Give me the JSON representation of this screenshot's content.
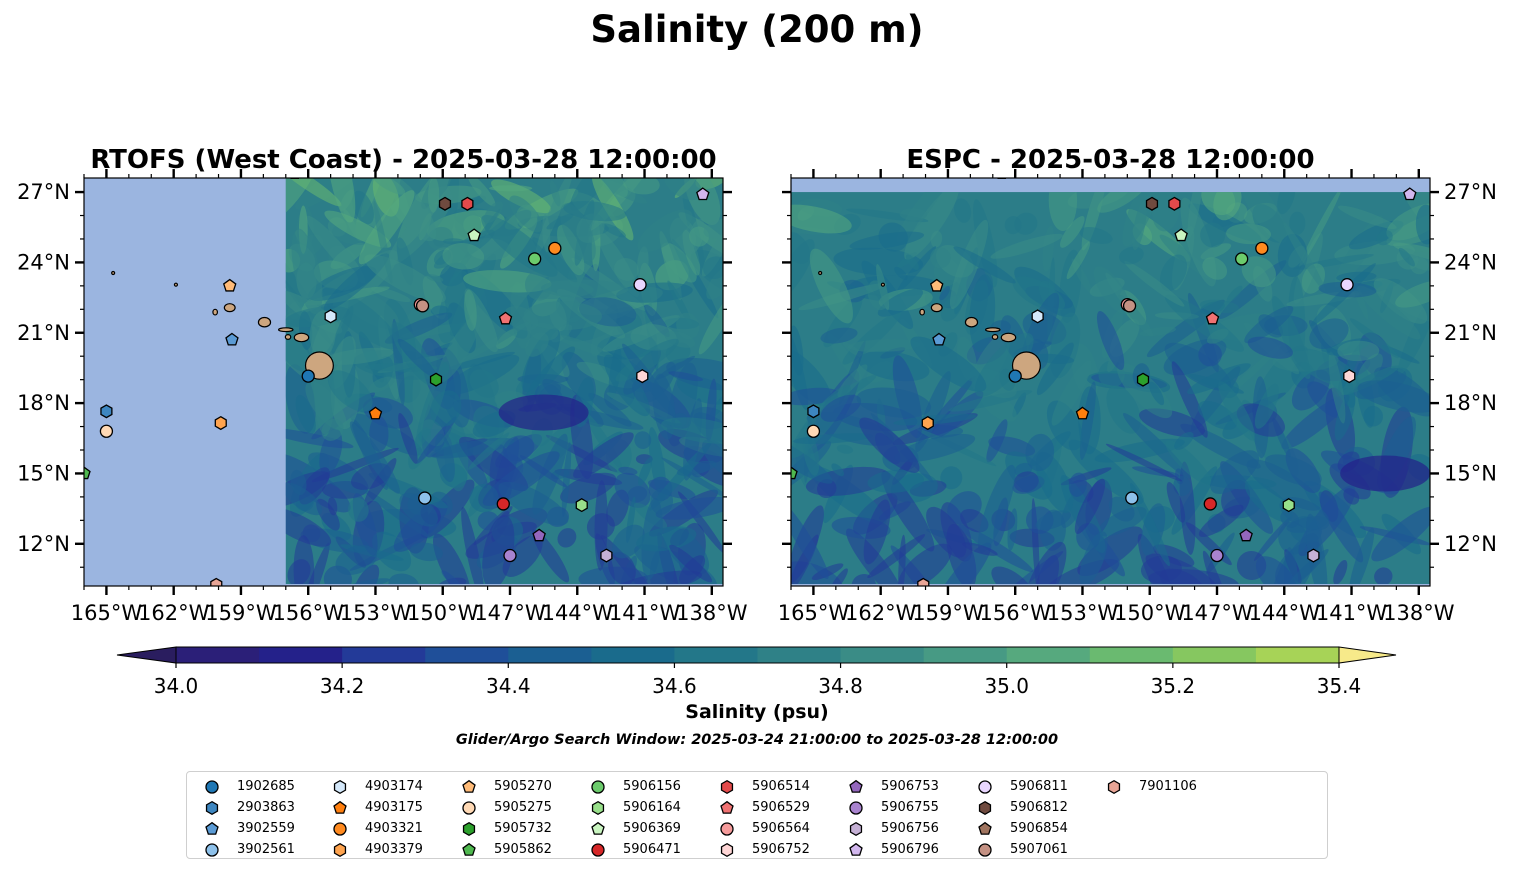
{
  "figure": {
    "title": "Salinity (200 m)",
    "colorbar_label": "Salinity (psu)",
    "search_window": "Glider/Argo Search Window: 2025-03-24 21:00:00 to 2025-03-28 12:00:00"
  },
  "chart_data": {
    "type": "heatmap",
    "title": "Salinity (200 m)",
    "colorbar": {
      "label": "Salinity (psu)",
      "range": [
        34.0,
        35.4
      ],
      "step": 0.1,
      "extend": "both",
      "ticks": [
        34.0,
        34.2,
        34.4,
        34.6,
        34.8,
        35.0,
        35.2,
        35.4
      ],
      "tick_labels": [
        "34.0",
        "34.2",
        "34.4",
        "34.6",
        "34.8",
        "35.0",
        "35.2",
        "35.4"
      ],
      "colors": [
        "#2b1f78",
        "#24218a",
        "#233a98",
        "#1f4f99",
        "#1b5f92",
        "#1a6b8c",
        "#237789",
        "#2f8187",
        "#3a8c86",
        "#479a84",
        "#56a97e",
        "#6aba70",
        "#86c760",
        "#a7d357",
        "#d2e16a"
      ],
      "under_color": "#2a1d5f",
      "over_color": "#f7ea8a"
    },
    "map_extent": {
      "lon": [
        -166,
        -137.5
      ],
      "lat": [
        10.2,
        27.6
      ]
    },
    "x_ticks": [
      -165,
      -162,
      -159,
      -156,
      -153,
      -150,
      -147,
      -144,
      -141,
      -138
    ],
    "x_tick_labels": [
      "165°W",
      "162°W",
      "159°W",
      "156°W",
      "153°W",
      "150°W",
      "147°W",
      "144°W",
      "141°W",
      "138°W"
    ],
    "y_ticks": [
      12,
      15,
      18,
      21,
      24,
      27
    ],
    "y_tick_labels": [
      "12°N",
      "15°N",
      "18°N",
      "21°N",
      "24°N",
      "27°N"
    ],
    "panels": [
      {
        "title": "RTOFS (West Coast) - 2025-03-28 12:00:00",
        "model_lon_min": -157,
        "model_lat_max": 27.6,
        "tick_side": "left"
      },
      {
        "title": "ESPC - 2025-03-28 12:00:00",
        "model_lon_min": -166,
        "model_lat_max": 27.0,
        "tick_side": "right"
      }
    ],
    "colors": {
      "ocean_nodata": "#9bb5e0",
      "land": "#cda67f",
      "coast": "#000000"
    },
    "islands": [
      {
        "name": "Hawaii",
        "lon": -155.5,
        "lat": 19.6,
        "rx": 0.62,
        "ry": 0.58
      },
      {
        "name": "Maui",
        "lon": -156.3,
        "lat": 20.8,
        "rx": 0.32,
        "ry": 0.18
      },
      {
        "name": "Molokai",
        "lon": -157.0,
        "lat": 21.13,
        "rx": 0.32,
        "ry": 0.08
      },
      {
        "name": "Lanai",
        "lon": -156.9,
        "lat": 20.82,
        "rx": 0.12,
        "ry": 0.1
      },
      {
        "name": "Oahu",
        "lon": -157.95,
        "lat": 21.45,
        "rx": 0.27,
        "ry": 0.2
      },
      {
        "name": "Kauai",
        "lon": -159.5,
        "lat": 22.07,
        "rx": 0.24,
        "ry": 0.17
      },
      {
        "name": "Niihau",
        "lon": -160.15,
        "lat": 21.88,
        "rx": 0.1,
        "ry": 0.12
      },
      {
        "name": "Nihoa",
        "lon": -161.9,
        "lat": 23.05,
        "rx": 0.05,
        "ry": 0.05
      },
      {
        "name": "Necker",
        "lon": -164.7,
        "lat": 23.55,
        "rx": 0.05,
        "ry": 0.05
      },
      {
        "name": "French Frigate",
        "lon": -166.2,
        "lat": 23.85,
        "rx": 0.08,
        "ry": 0.05
      }
    ],
    "series": [
      {
        "name": "1902685",
        "lon": -156.0,
        "lat": 19.15,
        "marker": "circle",
        "color": "#1f77b4"
      },
      {
        "name": "2903863",
        "lon": -165.0,
        "lat": 17.65,
        "marker": "hexagon",
        "color": "#3d86c0"
      },
      {
        "name": "3902559",
        "lon": -159.4,
        "lat": 20.7,
        "marker": "pentagon",
        "color": "#5b9bd5"
      },
      {
        "name": "3902561",
        "lon": -150.8,
        "lat": 13.95,
        "marker": "circle",
        "color": "#8ec1ea"
      },
      {
        "name": "4903174",
        "lon": -155.0,
        "lat": 21.7,
        "marker": "hexagon",
        "color": "#d4e8fa"
      },
      {
        "name": "4903175",
        "lon": -153.0,
        "lat": 17.55,
        "marker": "pentagon",
        "color": "#ff7f0e"
      },
      {
        "name": "4903321",
        "lon": -145.0,
        "lat": 24.6,
        "marker": "circle",
        "color": "#ff8a1f"
      },
      {
        "name": "4903379",
        "lon": -159.9,
        "lat": 17.15,
        "marker": "hexagon",
        "color": "#ffa44f"
      },
      {
        "name": "5905270",
        "lon": -159.5,
        "lat": 23.0,
        "marker": "pentagon",
        "color": "#ffbb78"
      },
      {
        "name": "5905275",
        "lon": -165.0,
        "lat": 16.8,
        "marker": "circle",
        "color": "#ffd9b5"
      },
      {
        "name": "5905732",
        "lon": -150.3,
        "lat": 19.0,
        "marker": "hexagon",
        "color": "#2ca02c"
      },
      {
        "name": "5905862",
        "lon": -166.0,
        "lat": 15.0,
        "marker": "pentagon",
        "color": "#4fb84f"
      },
      {
        "name": "5906156",
        "lon": -145.9,
        "lat": 24.15,
        "marker": "circle",
        "color": "#6ccb6c"
      },
      {
        "name": "5906164",
        "lon": -143.8,
        "lat": 13.65,
        "marker": "hexagon",
        "color": "#98df8a"
      },
      {
        "name": "5906369",
        "lon": -148.6,
        "lat": 25.15,
        "marker": "pentagon",
        "color": "#c9f5c0"
      },
      {
        "name": "5906471",
        "lon": -147.3,
        "lat": 13.7,
        "marker": "circle",
        "color": "#d62728"
      },
      {
        "name": "5906514",
        "lon": -148.9,
        "lat": 26.5,
        "marker": "hexagon",
        "color": "#e34a4b"
      },
      {
        "name": "5906529",
        "lon": -147.2,
        "lat": 21.6,
        "marker": "pentagon",
        "color": "#f07272"
      },
      {
        "name": "5906564",
        "lon": -151.0,
        "lat": 22.2,
        "marker": "circle",
        "color": "#f59b9b"
      },
      {
        "name": "5906752",
        "lon": -141.1,
        "lat": 19.15,
        "marker": "hexagon",
        "color": "#ffd6d6"
      },
      {
        "name": "5906753",
        "lon": -145.7,
        "lat": 12.35,
        "marker": "pentagon",
        "color": "#9467bd"
      },
      {
        "name": "5906755",
        "lon": -147.0,
        "lat": 11.5,
        "marker": "circle",
        "color": "#a983cf"
      },
      {
        "name": "5906756",
        "lon": -142.7,
        "lat": 11.5,
        "marker": "hexagon",
        "color": "#c5b0d5"
      },
      {
        "name": "5906796",
        "lon": -138.4,
        "lat": 26.9,
        "marker": "pentagon",
        "color": "#d2b7ee"
      },
      {
        "name": "5906811",
        "lon": -141.2,
        "lat": 23.05,
        "marker": "circle",
        "color": "#e9d6ff"
      },
      {
        "name": "5906812",
        "lon": -149.9,
        "lat": 26.5,
        "marker": "hexagon",
        "color": "#6f4a3f"
      },
      {
        "name": "5906854",
        "lon": -156.6,
        "lat": 27.8,
        "marker": "pentagon",
        "color": "#a0745f"
      },
      {
        "name": "5907061",
        "lon": -150.9,
        "lat": 22.15,
        "marker": "circle",
        "color": "#c49183"
      },
      {
        "name": "7901106",
        "lon": -160.1,
        "lat": 10.25,
        "marker": "hexagon",
        "color": "#e8a596"
      }
    ]
  }
}
